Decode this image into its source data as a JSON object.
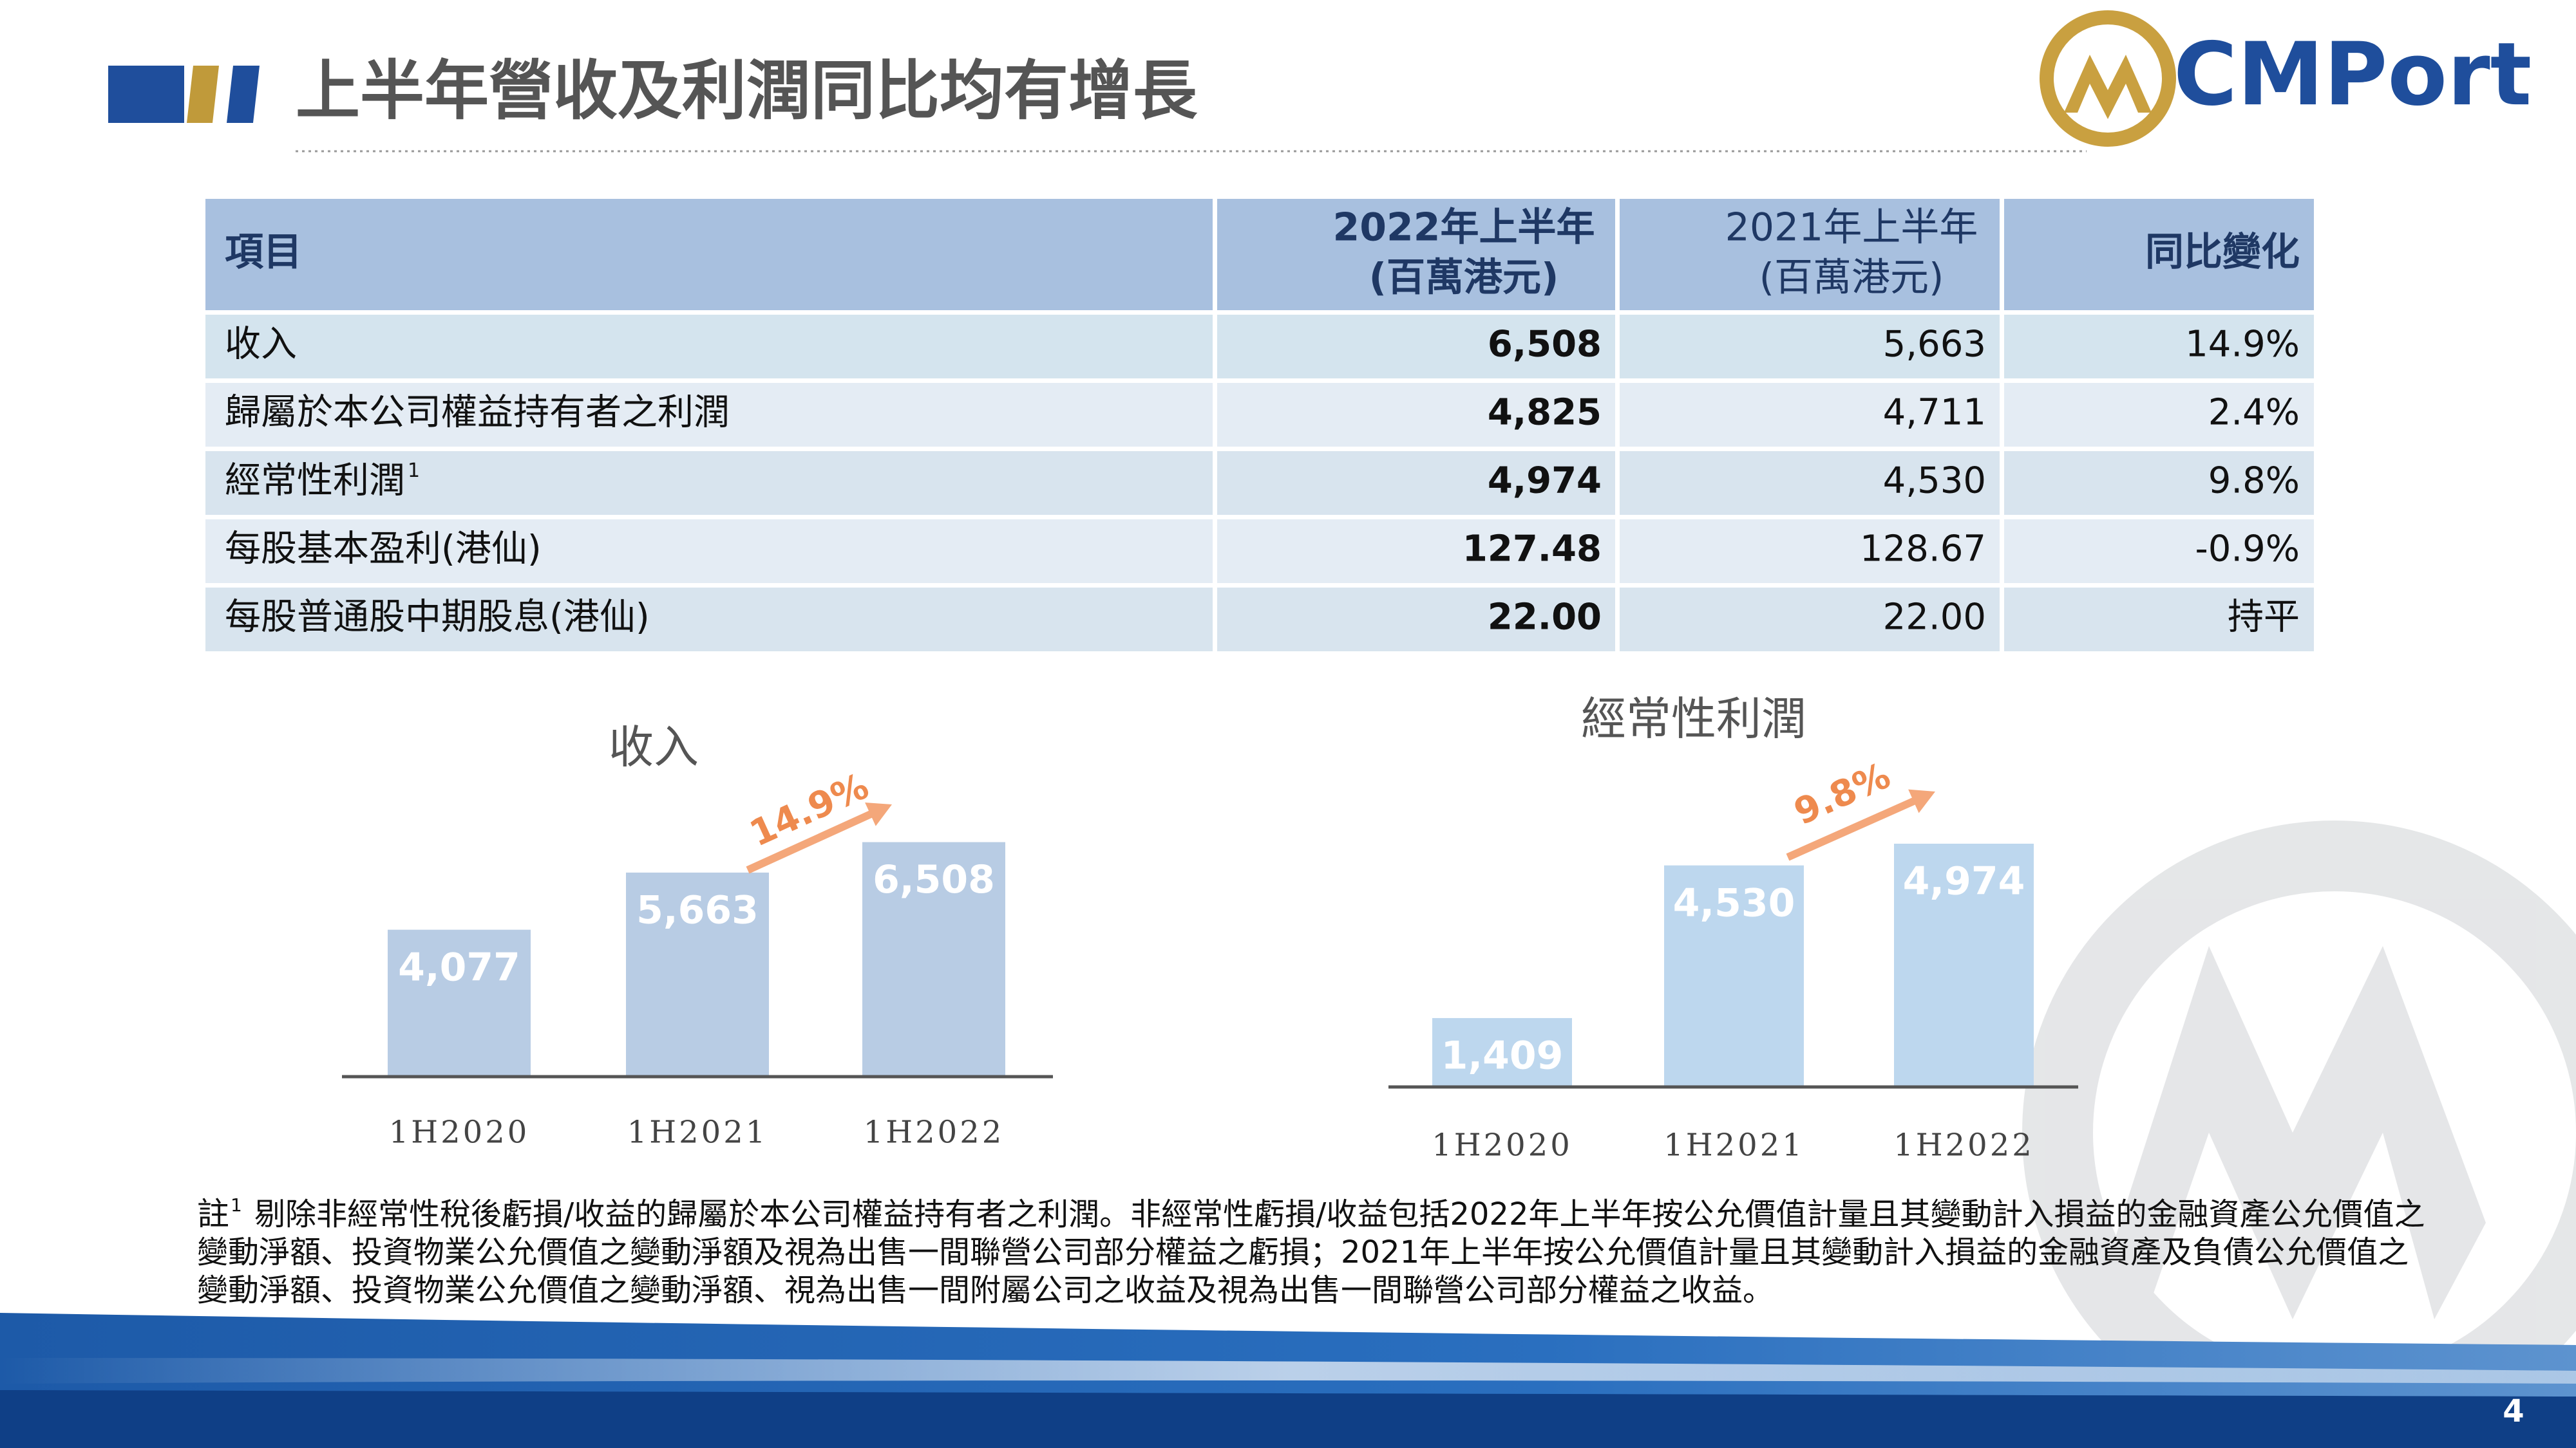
{
  "header": {
    "title": "上半年營收及利潤同比均有增長",
    "logo": "CMPort"
  },
  "table": {
    "header": [
      [
        "項目"
      ],
      [
        "2022年上半年",
        "(百萬港元)"
      ],
      [
        "2021年上半年",
        "(百萬港元)"
      ],
      [
        "同比變化"
      ]
    ],
    "rows": [
      [
        "收入",
        "6,508",
        "5,663",
        "14.9%"
      ],
      [
        "歸屬於本公司權益持有者之利潤",
        "4,825",
        "4,711",
        "2.4%"
      ],
      [
        {
          "text": "經常性利潤",
          "sup": "1"
        },
        "4,974",
        "4,530",
        "9.8%"
      ],
      [
        "每股基本盈利(港仙)",
        "127.48",
        "128.67",
        "-0.9%"
      ],
      [
        "每股普通股中期股息(港仙)",
        "22.00",
        "22.00",
        "持平"
      ]
    ]
  },
  "chart_data": [
    {
      "type": "bar",
      "title": "收入",
      "categories": [
        "1H2020",
        "1H2021",
        "1H2022"
      ],
      "values": [
        4077,
        5663,
        6508
      ],
      "value_labels": [
        "4,077",
        "5,663",
        "6,508"
      ],
      "color": "#b8cce4",
      "ylim": [
        0,
        7000
      ],
      "annotation": "14.9%"
    },
    {
      "type": "bar",
      "title": "經常性利潤",
      "categories": [
        "1H2020",
        "1H2021",
        "1H2022"
      ],
      "values": [
        1409,
        4530,
        4974
      ],
      "value_labels": [
        "1,409",
        "4,530",
        "4,974"
      ],
      "color": "#bdd7ee",
      "ylim": [
        0,
        5000
      ],
      "annotation": "9.8%"
    }
  ],
  "footnote": {
    "marker": "註",
    "ref": "1",
    "lines": [
      "剔除非經常性稅後虧損/收益的歸屬於本公司權益持有者之利潤。非經常性虧損/收益包括2022年上半年按公允價值計量且其變動計入損益的金融資產公允價值之",
      "變動淨額、投資物業公允價值之變動淨額及視為出售一間聯營公司部分權益之虧損；2021年上半年按公允價值計量且其變動計入損益的金融資產及負債公允價值之",
      "變動淨額、投資物業公允價值之變動淨額、視為出售一間附屬公司之收益及視為出售一間聯營公司部分權益之收益。"
    ]
  },
  "page_number": "4"
}
